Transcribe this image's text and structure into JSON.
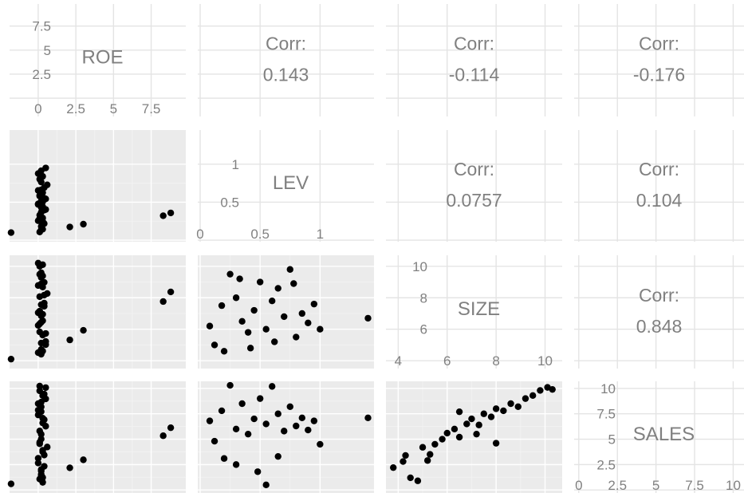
{
  "chart_data": {
    "type": "scatter",
    "layout": "pairs-matrix",
    "corr_label": "Corr:",
    "variables": [
      {
        "name": "ROE",
        "range": [
          -1.9,
          9.8
        ],
        "breaks": [
          0,
          2.5,
          5,
          7.5
        ],
        "tick_labels": [
          "0",
          "2.5",
          "5",
          "7.5"
        ],
        "y_tick_labels": [
          "2.5",
          "5",
          "7.5"
        ]
      },
      {
        "name": "LEV",
        "range": [
          -0.02,
          1.45
        ],
        "breaks": [
          0,
          0.5,
          1
        ],
        "tick_labels": [
          "0",
          "0.5",
          "1"
        ],
        "y_tick_labels": [
          "0.5",
          "1"
        ]
      },
      {
        "name": "SIZE",
        "range": [
          3.5,
          10.7
        ],
        "breaks": [
          4,
          6,
          8,
          10
        ],
        "tick_labels": [
          "4",
          "6",
          "8",
          "10"
        ],
        "y_tick_labels": [
          "6",
          "8",
          "10"
        ]
      },
      {
        "name": "SALES",
        "range": [
          -0.3,
          10.7
        ],
        "breaks": [
          0,
          2.5,
          5,
          7.5,
          10
        ],
        "tick_labels": [
          "0",
          "2.5",
          "5",
          "7.5",
          "10"
        ],
        "y_tick_labels": [
          "2.5",
          "5",
          "7.5",
          "10"
        ]
      }
    ],
    "correlations": [
      {
        "row": 0,
        "col": 1,
        "value": "0.143"
      },
      {
        "row": 0,
        "col": 2,
        "value": "-0.114"
      },
      {
        "row": 0,
        "col": 3,
        "value": "-0.176"
      },
      {
        "row": 1,
        "col": 2,
        "value": "0.0757"
      },
      {
        "row": 1,
        "col": 3,
        "value": "0.104"
      },
      {
        "row": 2,
        "col": 3,
        "value": "0.848"
      }
    ],
    "roe_points": [
      -1.8,
      0.2,
      2.1,
      3.0,
      0.3,
      0.1,
      8.3,
      8.8,
      0.4,
      0.2,
      0.0,
      0.3,
      0.5,
      0.1,
      0.2,
      0.0,
      0.4,
      0.6,
      0.2,
      0.1,
      0.3,
      0.0,
      0.2,
      0.5,
      0.1,
      0.3,
      0.2,
      0.4,
      0.0,
      0.3,
      0.1,
      0.2,
      0.5,
      0.3,
      0.0,
      0.2,
      0.4,
      0.1,
      0.3,
      0.2
    ],
    "lev_size_points": [
      [
        0.08,
        6.2
      ],
      [
        0.12,
        5.0
      ],
      [
        0.18,
        7.5
      ],
      [
        0.25,
        9.5
      ],
      [
        0.3,
        8.0
      ],
      [
        0.35,
        6.5
      ],
      [
        0.4,
        5.8
      ],
      [
        0.45,
        7.2
      ],
      [
        0.5,
        9.0
      ],
      [
        0.55,
        6.0
      ],
      [
        0.6,
        7.8
      ],
      [
        0.65,
        8.6
      ],
      [
        0.7,
        6.8
      ],
      [
        0.75,
        9.8
      ],
      [
        0.8,
        5.5
      ],
      [
        0.85,
        7.0
      ],
      [
        0.9,
        6.4
      ],
      [
        0.95,
        7.6
      ],
      [
        1.0,
        6.0
      ],
      [
        1.4,
        6.7
      ],
      [
        0.2,
        4.6
      ],
      [
        0.42,
        4.8
      ],
      [
        0.62,
        5.2
      ],
      [
        0.78,
        8.9
      ],
      [
        0.33,
        9.2
      ]
    ],
    "lev_sales_points": [
      [
        0.08,
        6.8
      ],
      [
        0.12,
        4.8
      ],
      [
        0.18,
        7.8
      ],
      [
        0.25,
        10.3
      ],
      [
        0.3,
        6.0
      ],
      [
        0.35,
        8.5
      ],
      [
        0.4,
        5.5
      ],
      [
        0.45,
        7.0
      ],
      [
        0.5,
        9.0
      ],
      [
        0.55,
        6.5
      ],
      [
        0.6,
        10.2
      ],
      [
        0.65,
        7.5
      ],
      [
        0.7,
        5.8
      ],
      [
        0.75,
        8.2
      ],
      [
        0.8,
        6.3
      ],
      [
        0.85,
        7.1
      ],
      [
        0.9,
        5.9
      ],
      [
        0.95,
        6.8
      ],
      [
        1.0,
        4.5
      ],
      [
        1.4,
        7.1
      ],
      [
        0.3,
        2.5
      ],
      [
        0.55,
        0.5
      ],
      [
        0.2,
        3.1
      ],
      [
        0.48,
        1.8
      ],
      [
        0.65,
        3.3
      ]
    ],
    "size_sales_points": [
      [
        3.8,
        2.2
      ],
      [
        4.2,
        2.8
      ],
      [
        4.5,
        1.2
      ],
      [
        4.8,
        0.9
      ],
      [
        5.0,
        4.2
      ],
      [
        5.3,
        3.5
      ],
      [
        5.5,
        4.5
      ],
      [
        5.8,
        5.0
      ],
      [
        6.0,
        5.6
      ],
      [
        6.3,
        6.0
      ],
      [
        6.5,
        5.2
      ],
      [
        6.8,
        6.5
      ],
      [
        7.0,
        7.0
      ],
      [
        7.3,
        6.4
      ],
      [
        7.5,
        7.5
      ],
      [
        7.8,
        7.2
      ],
      [
        8.0,
        8.0
      ],
      [
        8.3,
        7.8
      ],
      [
        8.6,
        8.5
      ],
      [
        8.9,
        8.2
      ],
      [
        9.2,
        9.0
      ],
      [
        9.5,
        9.3
      ],
      [
        9.8,
        9.8
      ],
      [
        10.1,
        10.1
      ],
      [
        10.3,
        9.9
      ],
      [
        8.0,
        4.6
      ],
      [
        6.5,
        7.7
      ],
      [
        5.2,
        2.9
      ],
      [
        4.3,
        3.4
      ],
      [
        7.2,
        5.5
      ]
    ]
  }
}
